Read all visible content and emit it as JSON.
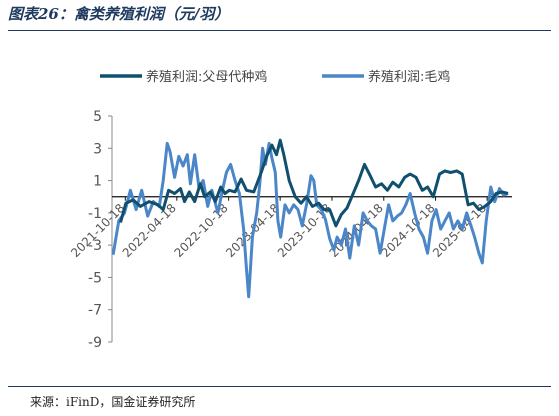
{
  "header": {
    "title": "图表26：禽类养殖利润（元/羽）"
  },
  "footer": {
    "source": "来源：iFinD，国金证券研究所"
  },
  "chart_data": {
    "type": "line",
    "title": "图表26：禽类养殖利润（元/羽）",
    "ylim": [
      -9,
      5
    ],
    "yticks": [
      5,
      3,
      1,
      -1,
      -3,
      -5,
      -7,
      -9
    ],
    "xlim": [
      "2021-09-01",
      "2025-07-15"
    ],
    "xticks": [
      "2021-10-18",
      "2022-04-18",
      "2022-10-18",
      "2023-04-18",
      "2023-10-18",
      "2024-04-18",
      "2024-10-18",
      "2025-04-18"
    ],
    "grid": false,
    "legend_position": "top",
    "series": [
      {
        "name": "养殖利润:父母代种鸡",
        "color": "#10506e",
        "points": [
          [
            "2021-10-01",
            -1.6
          ],
          [
            "2021-10-20",
            -0.4
          ],
          [
            "2021-11-15",
            -0.2
          ],
          [
            "2021-12-10",
            -0.6
          ],
          [
            "2022-01-10",
            -0.3
          ],
          [
            "2022-02-10",
            -0.5
          ],
          [
            "2022-03-01",
            -0.8
          ],
          [
            "2022-03-20",
            0.4
          ],
          [
            "2022-04-10",
            0.2
          ],
          [
            "2022-05-01",
            0.5
          ],
          [
            "2022-05-15",
            -0.3
          ],
          [
            "2022-06-01",
            0.3
          ],
          [
            "2022-06-20",
            -0.3
          ],
          [
            "2022-07-10",
            0.8
          ],
          [
            "2022-07-25",
            0.0
          ],
          [
            "2022-08-15",
            0.3
          ],
          [
            "2022-09-01",
            -0.3
          ],
          [
            "2022-09-20",
            0.6
          ],
          [
            "2022-10-05",
            0.2
          ],
          [
            "2022-10-20",
            0.4
          ],
          [
            "2022-11-10",
            0.3
          ],
          [
            "2022-12-01",
            1.1
          ],
          [
            "2022-12-20",
            0.4
          ],
          [
            "2023-01-15",
            0.3
          ],
          [
            "2023-02-10",
            1.5
          ],
          [
            "2023-03-01",
            2.5
          ],
          [
            "2023-03-20",
            3.2
          ],
          [
            "2023-04-05",
            2.6
          ],
          [
            "2023-04-18",
            3.5
          ],
          [
            "2023-05-01",
            2.6
          ],
          [
            "2023-05-20",
            1.0
          ],
          [
            "2023-06-10",
            0.0
          ],
          [
            "2023-07-01",
            -0.4
          ],
          [
            "2023-07-20",
            0.0
          ],
          [
            "2023-08-10",
            -0.6
          ],
          [
            "2023-09-01",
            -0.4
          ],
          [
            "2023-09-20",
            -0.8
          ],
          [
            "2023-10-10",
            -0.8
          ],
          [
            "2023-11-01",
            -1.8
          ],
          [
            "2023-11-20",
            -1.1
          ],
          [
            "2023-12-10",
            -0.7
          ],
          [
            "2024-01-01",
            0.2
          ],
          [
            "2024-01-20",
            1.0
          ],
          [
            "2024-02-10",
            2.0
          ],
          [
            "2024-03-01",
            1.3
          ],
          [
            "2024-03-20",
            0.6
          ],
          [
            "2024-04-10",
            0.8
          ],
          [
            "2024-05-01",
            0.4
          ],
          [
            "2024-05-20",
            0.9
          ],
          [
            "2024-06-10",
            0.6
          ],
          [
            "2024-07-01",
            1.2
          ],
          [
            "2024-07-20",
            1.4
          ],
          [
            "2024-08-10",
            1.2
          ],
          [
            "2024-09-01",
            0.4
          ],
          [
            "2024-09-20",
            0.6
          ],
          [
            "2024-10-10",
            0.0
          ],
          [
            "2024-11-01",
            1.4
          ],
          [
            "2024-11-20",
            1.6
          ],
          [
            "2024-12-10",
            1.5
          ],
          [
            "2025-01-01",
            1.6
          ],
          [
            "2025-01-20",
            1.4
          ],
          [
            "2025-02-10",
            -0.5
          ],
          [
            "2025-03-01",
            -0.4
          ],
          [
            "2025-03-20",
            -0.8
          ],
          [
            "2025-04-10",
            -0.6
          ],
          [
            "2025-05-01",
            -0.3
          ],
          [
            "2025-05-20",
            0.2
          ],
          [
            "2025-06-10",
            0.3
          ],
          [
            "2025-07-01",
            0.2
          ]
        ]
      },
      {
        "name": "养殖利润:毛鸡",
        "color": "#4a86c8",
        "points": [
          [
            "2021-09-05",
            -3.6
          ],
          [
            "2021-09-25",
            -1.5
          ],
          [
            "2021-10-15",
            -1.0
          ],
          [
            "2021-11-05",
            0.4
          ],
          [
            "2021-11-25",
            -0.8
          ],
          [
            "2021-12-15",
            0.4
          ],
          [
            "2022-01-05",
            -1.2
          ],
          [
            "2022-01-25",
            -0.3
          ],
          [
            "2022-02-15",
            -0.6
          ],
          [
            "2022-03-01",
            1.0
          ],
          [
            "2022-03-15",
            3.3
          ],
          [
            "2022-03-25",
            2.8
          ],
          [
            "2022-04-10",
            1.2
          ],
          [
            "2022-04-25",
            2.5
          ],
          [
            "2022-05-10",
            1.9
          ],
          [
            "2022-05-25",
            2.6
          ],
          [
            "2022-06-05",
            0.8
          ],
          [
            "2022-06-20",
            2.6
          ],
          [
            "2022-07-05",
            0.6
          ],
          [
            "2022-07-20",
            1.0
          ],
          [
            "2022-08-05",
            -0.6
          ],
          [
            "2022-08-20",
            0.4
          ],
          [
            "2022-09-10",
            -1.0
          ],
          [
            "2022-09-25",
            0.3
          ],
          [
            "2022-10-10",
            1.5
          ],
          [
            "2022-10-25",
            2.0
          ],
          [
            "2022-11-10",
            1.0
          ],
          [
            "2022-11-25",
            0.2
          ],
          [
            "2022-12-10",
            -2.0
          ],
          [
            "2022-12-20",
            -4.5
          ],
          [
            "2022-12-28",
            -6.2
          ],
          [
            "2023-01-10",
            -2.5
          ],
          [
            "2023-01-25",
            -1.0
          ],
          [
            "2023-02-05",
            0.8
          ],
          [
            "2023-02-15",
            3.0
          ],
          [
            "2023-02-25",
            2.0
          ],
          [
            "2023-03-10",
            3.3
          ],
          [
            "2023-03-20",
            2.4
          ],
          [
            "2023-04-01",
            1.5
          ],
          [
            "2023-04-10",
            -1.5
          ],
          [
            "2023-04-20",
            -2.5
          ],
          [
            "2023-05-05",
            -0.5
          ],
          [
            "2023-05-20",
            -1.0
          ],
          [
            "2023-06-05",
            -0.5
          ],
          [
            "2023-06-20",
            -0.8
          ],
          [
            "2023-07-05",
            -1.8
          ],
          [
            "2023-07-20",
            -0.5
          ],
          [
            "2023-08-05",
            1.3
          ],
          [
            "2023-08-15",
            1.0
          ],
          [
            "2023-08-25",
            -0.5
          ],
          [
            "2023-09-10",
            -0.8
          ],
          [
            "2023-09-25",
            -1.4
          ],
          [
            "2023-10-10",
            -2.6
          ],
          [
            "2023-10-25",
            -3.3
          ],
          [
            "2023-11-05",
            -2.5
          ],
          [
            "2023-11-20",
            -3.0
          ],
          [
            "2023-12-05",
            -2.0
          ],
          [
            "2023-12-20",
            -3.8
          ],
          [
            "2024-01-05",
            -1.8
          ],
          [
            "2024-01-20",
            -3.0
          ],
          [
            "2024-02-05",
            -1.0
          ],
          [
            "2024-02-20",
            -1.5
          ],
          [
            "2024-03-05",
            -1.8
          ],
          [
            "2024-03-20",
            -2.0
          ],
          [
            "2024-04-05",
            -3.5
          ],
          [
            "2024-04-20",
            -2.0
          ],
          [
            "2024-05-05",
            -0.5
          ],
          [
            "2024-05-20",
            -1.5
          ],
          [
            "2024-06-05",
            -1.2
          ],
          [
            "2024-06-20",
            -1.0
          ],
          [
            "2024-07-05",
            -0.5
          ],
          [
            "2024-07-20",
            0.2
          ],
          [
            "2024-08-05",
            -1.0
          ],
          [
            "2024-08-20",
            -2.0
          ],
          [
            "2024-09-05",
            -2.5
          ],
          [
            "2024-09-20",
            -3.5
          ],
          [
            "2024-10-05",
            -1.5
          ],
          [
            "2024-10-20",
            -0.8
          ],
          [
            "2024-11-05",
            -2.0
          ],
          [
            "2024-11-20",
            -1.5
          ],
          [
            "2024-12-05",
            -1.0
          ],
          [
            "2024-12-20",
            -2.0
          ],
          [
            "2025-01-05",
            -1.5
          ],
          [
            "2025-01-20",
            -2.0
          ],
          [
            "2025-02-05",
            -1.0
          ],
          [
            "2025-02-20",
            -1.8
          ],
          [
            "2025-03-05",
            -2.5
          ],
          [
            "2025-03-20",
            -3.5
          ],
          [
            "2025-04-01",
            -4.1
          ],
          [
            "2025-04-15",
            -1.5
          ],
          [
            "2025-05-01",
            0.6
          ],
          [
            "2025-05-15",
            -0.3
          ],
          [
            "2025-06-01",
            0.5
          ],
          [
            "2025-06-15",
            0.1
          ],
          [
            "2025-07-01",
            0.2
          ]
        ]
      }
    ]
  }
}
